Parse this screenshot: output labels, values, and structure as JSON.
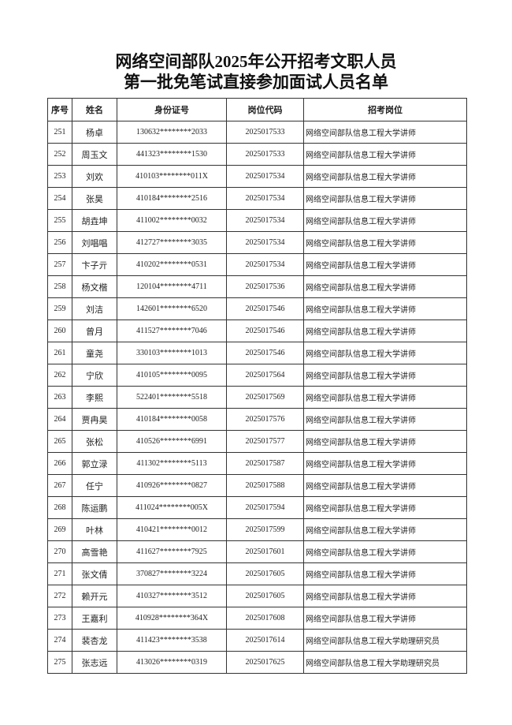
{
  "title_line1": "网络空间部队2025年公开招考文职人员",
  "title_line2": "第一批免笔试直接参加面试人员名单",
  "columns": [
    "序号",
    "姓名",
    "身份证号",
    "岗位代码",
    "招考岗位"
  ],
  "rows": [
    [
      "251",
      "杨卓",
      "130632********2033",
      "2025017533",
      "网络空间部队信息工程大学讲师"
    ],
    [
      "252",
      "周玉文",
      "441323********1530",
      "2025017533",
      "网络空间部队信息工程大学讲师"
    ],
    [
      "253",
      "刘欢",
      "410103********011X",
      "2025017534",
      "网络空间部队信息工程大学讲师"
    ],
    [
      "254",
      "张昊",
      "410184********2516",
      "2025017534",
      "网络空间部队信息工程大学讲师"
    ],
    [
      "255",
      "胡垚坤",
      "411002********0032",
      "2025017534",
      "网络空间部队信息工程大学讲师"
    ],
    [
      "256",
      "刘唱唱",
      "412727********3035",
      "2025017534",
      "网络空间部队信息工程大学讲师"
    ],
    [
      "257",
      "卞子亓",
      "410202********0531",
      "2025017534",
      "网络空间部队信息工程大学讲师"
    ],
    [
      "258",
      "杨文楷",
      "120104********4711",
      "2025017536",
      "网络空间部队信息工程大学讲师"
    ],
    [
      "259",
      "刘洁",
      "142601********6520",
      "2025017546",
      "网络空间部队信息工程大学讲师"
    ],
    [
      "260",
      "曾月",
      "411527********7046",
      "2025017546",
      "网络空间部队信息工程大学讲师"
    ],
    [
      "261",
      "童尧",
      "330103********1013",
      "2025017546",
      "网络空间部队信息工程大学讲师"
    ],
    [
      "262",
      "宁欣",
      "410105********0095",
      "2025017564",
      "网络空间部队信息工程大学讲师"
    ],
    [
      "263",
      "李熙",
      "522401********5518",
      "2025017569",
      "网络空间部队信息工程大学讲师"
    ],
    [
      "264",
      "贾冉昊",
      "410184********0058",
      "2025017576",
      "网络空间部队信息工程大学讲师"
    ],
    [
      "265",
      "张松",
      "410526********6991",
      "2025017577",
      "网络空间部队信息工程大学讲师"
    ],
    [
      "266",
      "郭立渌",
      "411302********5113",
      "2025017587",
      "网络空间部队信息工程大学讲师"
    ],
    [
      "267",
      "任宁",
      "410926********0827",
      "2025017588",
      "网络空间部队信息工程大学讲师"
    ],
    [
      "268",
      "陈运鹏",
      "411024********005X",
      "2025017594",
      "网络空间部队信息工程大学讲师"
    ],
    [
      "269",
      "叶林",
      "410421********0012",
      "2025017599",
      "网络空间部队信息工程大学讲师"
    ],
    [
      "270",
      "高雪艳",
      "411627********7925",
      "2025017601",
      "网络空间部队信息工程大学讲师"
    ],
    [
      "271",
      "张文倩",
      "370827********3224",
      "2025017605",
      "网络空间部队信息工程大学讲师"
    ],
    [
      "272",
      "赖开元",
      "410327********3512",
      "2025017605",
      "网络空间部队信息工程大学讲师"
    ],
    [
      "273",
      "王嘉利",
      "410928********364X",
      "2025017608",
      "网络空间部队信息工程大学讲师"
    ],
    [
      "274",
      "裴杏龙",
      "411423********3538",
      "2025017614",
      "网络空间部队信息工程大学助理研究员"
    ],
    [
      "275",
      "张志远",
      "413026********0319",
      "2025017625",
      "网络空间部队信息工程大学助理研究员"
    ]
  ]
}
